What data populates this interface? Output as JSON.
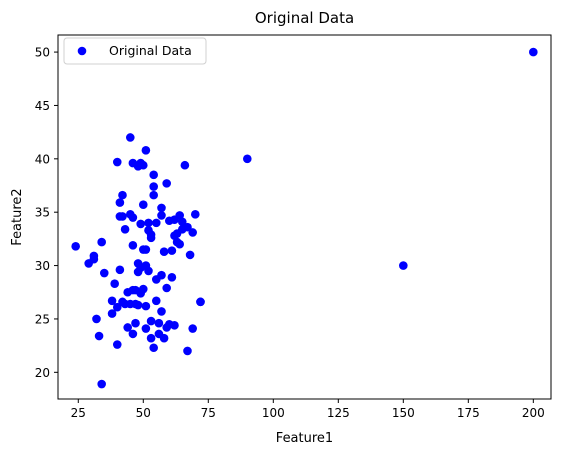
{
  "chart_data": {
    "type": "scatter",
    "title": "Original Data",
    "xlabel": "Feature1",
    "ylabel": "Feature2",
    "xlim": [
      17.2,
      206.8
    ],
    "ylim": [
      17.5,
      51.6
    ],
    "xticks": [
      25,
      50,
      75,
      100,
      125,
      150,
      175,
      200
    ],
    "yticks": [
      20,
      25,
      30,
      35,
      40,
      45,
      50
    ],
    "grid": false,
    "legend": {
      "position": "top-left",
      "entries": [
        "Original Data"
      ]
    },
    "series": [
      {
        "name": "Original Data",
        "color": "#0000ff",
        "x": [
          24,
          29,
          31,
          31,
          32,
          33,
          34,
          34,
          35,
          38,
          38,
          39,
          40,
          40,
          40,
          41,
          41,
          41,
          42,
          42,
          42,
          43,
          43,
          44,
          44,
          45,
          45,
          45,
          46,
          46,
          46,
          46,
          46,
          47,
          47,
          47,
          48,
          48,
          48,
          48,
          49,
          49,
          49,
          49,
          50,
          50,
          50,
          50,
          51,
          51,
          51,
          51,
          51,
          52,
          52,
          52,
          53,
          53,
          53,
          53,
          54,
          54,
          54,
          54,
          55,
          55,
          55,
          56,
          56,
          57,
          57,
          57,
          57,
          58,
          58,
          59,
          59,
          59,
          60,
          60,
          61,
          61,
          62,
          62,
          62,
          63,
          63,
          64,
          64,
          65,
          65,
          66,
          67,
          67,
          68,
          69,
          69,
          70,
          72,
          72,
          90,
          150,
          200
        ],
        "y": [
          31.8,
          30.2,
          30.6,
          30.9,
          25.0,
          23.4,
          18.9,
          32.2,
          29.3,
          26.7,
          25.5,
          28.3,
          22.6,
          26.1,
          39.7,
          29.6,
          34.6,
          35.9,
          26.6,
          36.6,
          34.6,
          26.4,
          33.4,
          24.2,
          27.5,
          26.4,
          42.0,
          34.8,
          31.9,
          27.7,
          34.5,
          39.6,
          23.6,
          26.4,
          24.6,
          27.7,
          39.3,
          30.2,
          29.4,
          26.3,
          39.6,
          33.9,
          27.4,
          29.8,
          35.7,
          31.5,
          39.4,
          27.8,
          40.8,
          31.5,
          26.2,
          24.1,
          30.0,
          33.3,
          29.5,
          34.0,
          32.9,
          24.8,
          32.6,
          23.2,
          37.4,
          36.6,
          38.5,
          22.3,
          34.0,
          26.7,
          28.7,
          24.6,
          23.6,
          29.1,
          35.4,
          34.7,
          25.7,
          31.3,
          23.2,
          24.2,
          27.9,
          37.7,
          34.2,
          24.5,
          31.4,
          28.9,
          32.8,
          24.4,
          34.3,
          32.2,
          33.0,
          32.0,
          34.7,
          33.4,
          34.1,
          39.4,
          22.0,
          33.6,
          31.0,
          24.1,
          33.1,
          34.8,
          26.6,
          26.6,
          40.0,
          30.0,
          50.0
        ]
      }
    ]
  }
}
